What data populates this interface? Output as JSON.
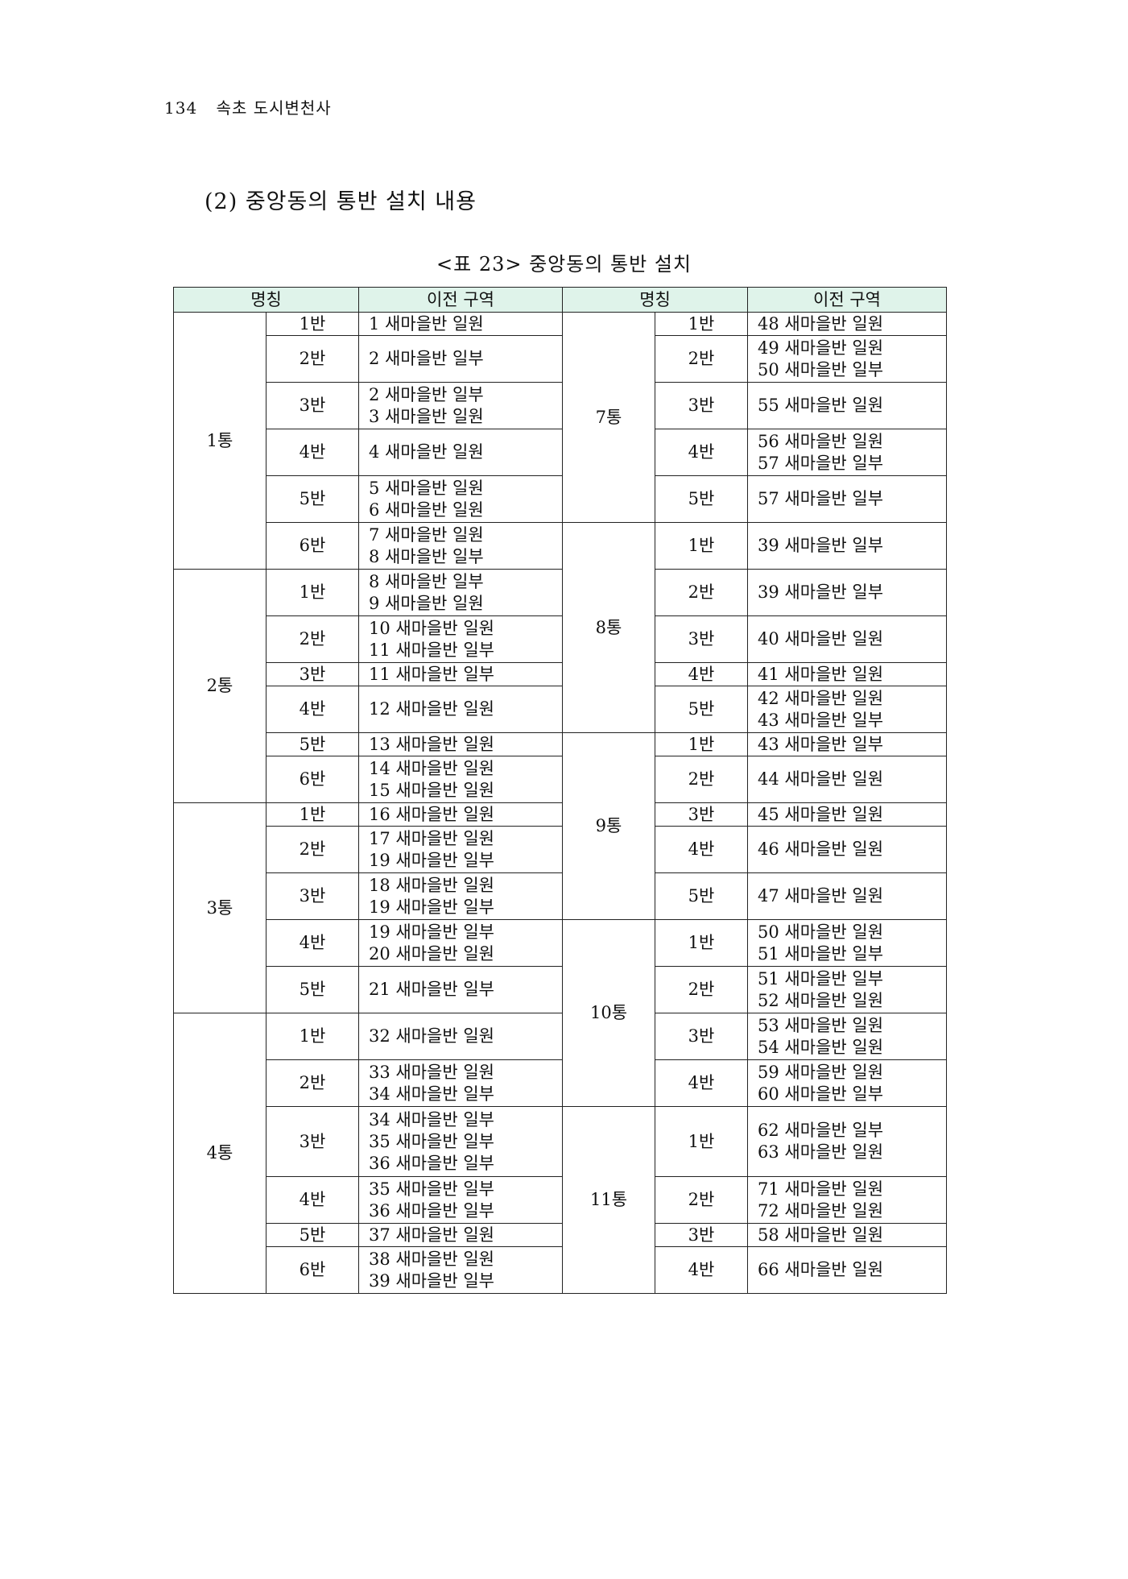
{
  "page_header": {
    "page_number": "134",
    "book_title": "속초 도시변천사"
  },
  "section_title": "(2) 중앙동의 통반 설치 내용",
  "table_caption": "<표 23> 중앙동의 통반 설치",
  "headers": [
    "명칭",
    "이전 구역",
    "명칭",
    "이전 구역"
  ],
  "left": [
    {
      "tong": "1통",
      "bans": [
        {
          "ban": "1반",
          "area": [
            "1 새마을반 일원"
          ]
        },
        {
          "ban": "2반",
          "area": [
            "2 새마을반 일부"
          ]
        },
        {
          "ban": "3반",
          "area": [
            "2 새마을반 일부",
            "3 새마을반 일원"
          ]
        },
        {
          "ban": "4반",
          "area": [
            "4 새마을반 일원"
          ]
        },
        {
          "ban": "5반",
          "area": [
            "5 새마을반 일원",
            "6 새마을반 일원"
          ]
        },
        {
          "ban": "6반",
          "area": [
            "7 새마을반 일원",
            "8 새마을반 일부"
          ]
        }
      ]
    },
    {
      "tong": "2통",
      "bans": [
        {
          "ban": "1반",
          "area": [
            "8 새마을반 일부",
            "9 새마을반 일원"
          ]
        },
        {
          "ban": "2반",
          "area": [
            "10 새마을반 일원",
            "11 새마을반 일부"
          ]
        },
        {
          "ban": "3반",
          "area": [
            "11 새마을반 일부"
          ]
        },
        {
          "ban": "4반",
          "area": [
            "12 새마을반 일원"
          ]
        },
        {
          "ban": "5반",
          "area": [
            "13 새마을반 일원"
          ]
        },
        {
          "ban": "6반",
          "area": [
            "14 새마을반 일원",
            "15 새마을반 일원"
          ]
        }
      ]
    },
    {
      "tong": "3통",
      "bans": [
        {
          "ban": "1반",
          "area": [
            "16 새마을반 일원"
          ]
        },
        {
          "ban": "2반",
          "area": [
            "17 새마을반 일원",
            "19 새마을반 일부"
          ]
        },
        {
          "ban": "3반",
          "area": [
            "18 새마을반 일원",
            "19 새마을반 일부"
          ]
        },
        {
          "ban": "4반",
          "area": [
            "19 새마을반 일부",
            "20 새마을반 일원"
          ]
        },
        {
          "ban": "5반",
          "area": [
            "21 새마을반 일부"
          ]
        }
      ]
    },
    {
      "tong": "4통",
      "bans": [
        {
          "ban": "1반",
          "area": [
            "32 새마을반 일원"
          ]
        },
        {
          "ban": "2반",
          "area": [
            "33 새마을반 일원",
            "34 새마을반 일부"
          ]
        },
        {
          "ban": "3반",
          "area": [
            "34 새마을반 일부",
            "35 새마을반 일부",
            "36 새마을반 일부"
          ]
        },
        {
          "ban": "4반",
          "area": [
            "35 새마을반 일부",
            "36 새마을반 일부"
          ]
        },
        {
          "ban": "5반",
          "area": [
            "37 새마을반 일원"
          ]
        },
        {
          "ban": "6반",
          "area": [
            "38 새마을반 일원",
            "39 새마을반 일부"
          ]
        }
      ]
    }
  ],
  "right": [
    {
      "tong": "7통",
      "bans": [
        {
          "ban": "1반",
          "area": [
            "48 새마을반 일원"
          ]
        },
        {
          "ban": "2반",
          "area": [
            "49 새마을반 일원",
            "50 새마을반 일부"
          ]
        },
        {
          "ban": "3반",
          "area": [
            "55 새마을반 일원"
          ]
        },
        {
          "ban": "4반",
          "area": [
            "56 새마을반 일원",
            "57 새마을반 일부"
          ]
        },
        {
          "ban": "5반",
          "area": [
            "57 새마을반 일부"
          ]
        }
      ]
    },
    {
      "tong": "8통",
      "bans": [
        {
          "ban": "1반",
          "area": [
            "39 새마을반 일부"
          ]
        },
        {
          "ban": "2반",
          "area": [
            "39 새마을반 일부"
          ]
        },
        {
          "ban": "3반",
          "area": [
            "40 새마을반 일원"
          ]
        },
        {
          "ban": "4반",
          "area": [
            "41 새마을반 일원"
          ]
        },
        {
          "ban": "5반",
          "area": [
            "42 새마을반 일원",
            "43 새마을반 일부"
          ]
        }
      ]
    },
    {
      "tong": "9통",
      "bans": [
        {
          "ban": "1반",
          "area": [
            "43 새마을반 일부"
          ]
        },
        {
          "ban": "2반",
          "area": [
            "44 새마을반 일원"
          ]
        },
        {
          "ban": "3반",
          "area": [
            "45 새마을반 일원"
          ]
        },
        {
          "ban": "4반",
          "area": [
            "46 새마을반 일원"
          ]
        },
        {
          "ban": "5반",
          "area": [
            "47 새마을반 일원"
          ]
        }
      ]
    },
    {
      "tong": "10통",
      "bans": [
        {
          "ban": "1반",
          "area": [
            "50 새마을반 일원",
            "51 새마을반 일부"
          ]
        },
        {
          "ban": "2반",
          "area": [
            "51 새마을반 일부",
            "52 새마을반 일원"
          ]
        },
        {
          "ban": "3반",
          "area": [
            "53 새마을반 일원",
            "54 새마을반 일원"
          ]
        },
        {
          "ban": "4반",
          "area": [
            "59 새마을반 일원",
            "60 새마을반 일부"
          ]
        }
      ]
    },
    {
      "tong": "11통",
      "bans": [
        {
          "ban": "1반",
          "area": [
            "62 새마을반 일부",
            "63 새마을반 일원"
          ]
        },
        {
          "ban": "2반",
          "area": [
            "71 새마을반 일원",
            "72 새마을반 일원"
          ]
        },
        {
          "ban": "3반",
          "area": [
            "58 새마을반 일원"
          ]
        },
        {
          "ban": "4반",
          "area": [
            "66 새마을반 일원"
          ]
        }
      ]
    }
  ]
}
